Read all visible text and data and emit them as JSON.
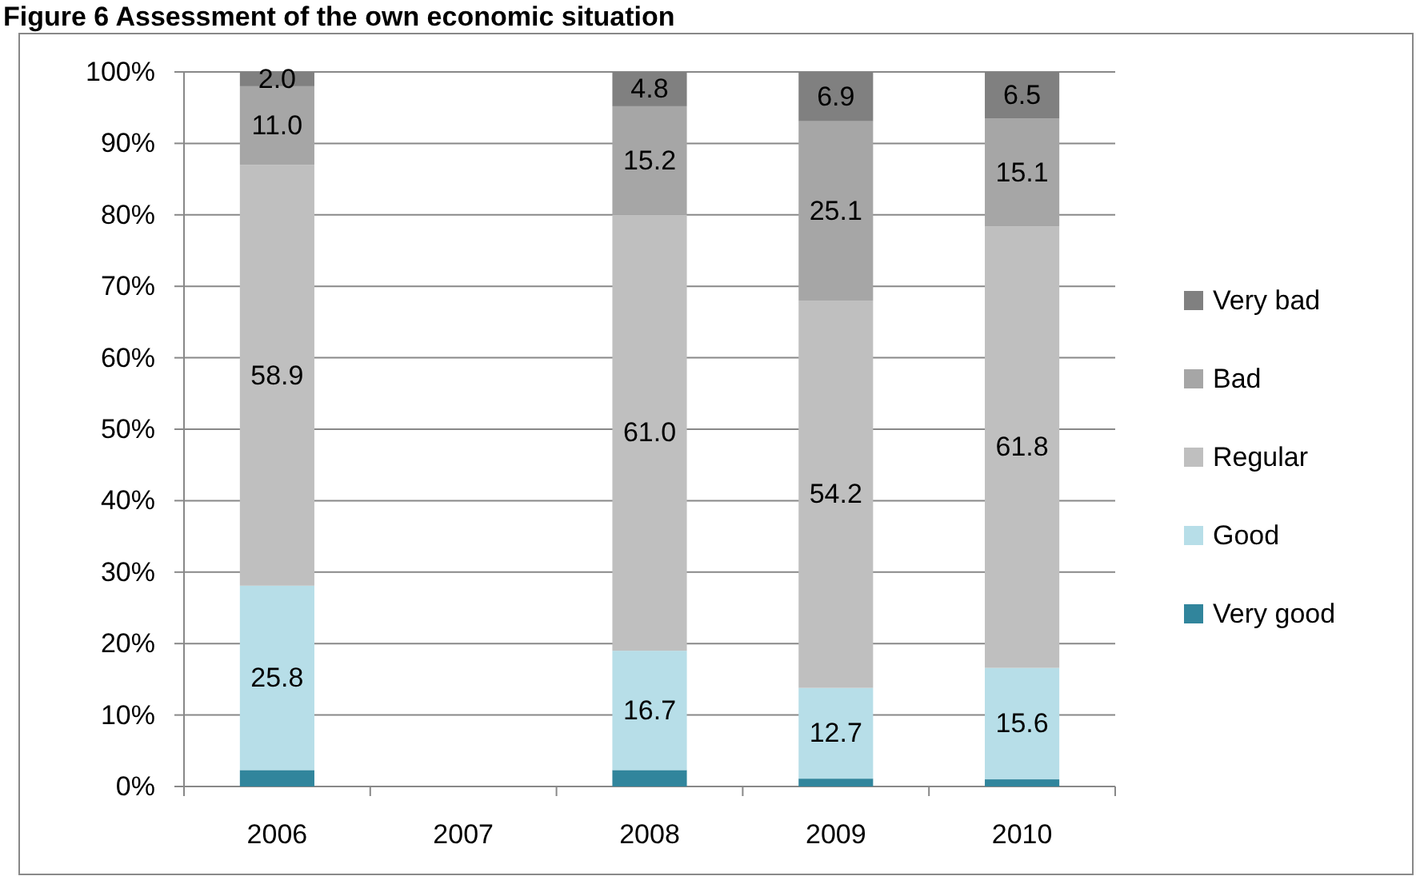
{
  "chart_data": {
    "type": "bar",
    "stacked": true,
    "title": "Figure 6 Assessment of the own economic situation",
    "categories": [
      "2006",
      "2007",
      "2008",
      "2009",
      "2010"
    ],
    "series": [
      {
        "name": "Very good",
        "color": "#31859c",
        "values": [
          2.3,
          null,
          2.3,
          1.1,
          1.0
        ],
        "value_labels": [
          null,
          null,
          null,
          null,
          null
        ]
      },
      {
        "name": "Good",
        "color": "#b7dee8",
        "values": [
          25.8,
          null,
          16.7,
          12.7,
          15.6
        ],
        "value_labels": [
          "25.8",
          null,
          "16.7",
          "12.7",
          "15.6"
        ]
      },
      {
        "name": "Regular",
        "color": "#bfbfbf",
        "values": [
          58.9,
          null,
          61.0,
          54.2,
          61.8
        ],
        "value_labels": [
          "58.9",
          null,
          "61.0",
          "54.2",
          "61.8"
        ]
      },
      {
        "name": "Bad",
        "color": "#a6a6a6",
        "values": [
          11.0,
          null,
          15.2,
          25.1,
          15.1
        ],
        "value_labels": [
          "11.0",
          null,
          "15.2",
          "25.1",
          "15.1"
        ]
      },
      {
        "name": "Very bad",
        "color": "#808080",
        "values": [
          2.0,
          null,
          4.8,
          6.9,
          6.5
        ],
        "value_labels": [
          "2.0",
          null,
          "4.8",
          "6.9",
          "6.5"
        ]
      }
    ],
    "ylim": [
      0,
      100
    ],
    "yticks": [
      {
        "value": 0,
        "label": "0%"
      },
      {
        "value": 10,
        "label": "10%"
      },
      {
        "value": 20,
        "label": "20%"
      },
      {
        "value": 30,
        "label": "30%"
      },
      {
        "value": 40,
        "label": "40%"
      },
      {
        "value": 50,
        "label": "50%"
      },
      {
        "value": 60,
        "label": "60%"
      },
      {
        "value": 70,
        "label": "70%"
      },
      {
        "value": 80,
        "label": "80%"
      },
      {
        "value": 90,
        "label": "90%"
      },
      {
        "value": 100,
        "label": "100%"
      }
    ],
    "grid": "y",
    "legend": "right"
  }
}
